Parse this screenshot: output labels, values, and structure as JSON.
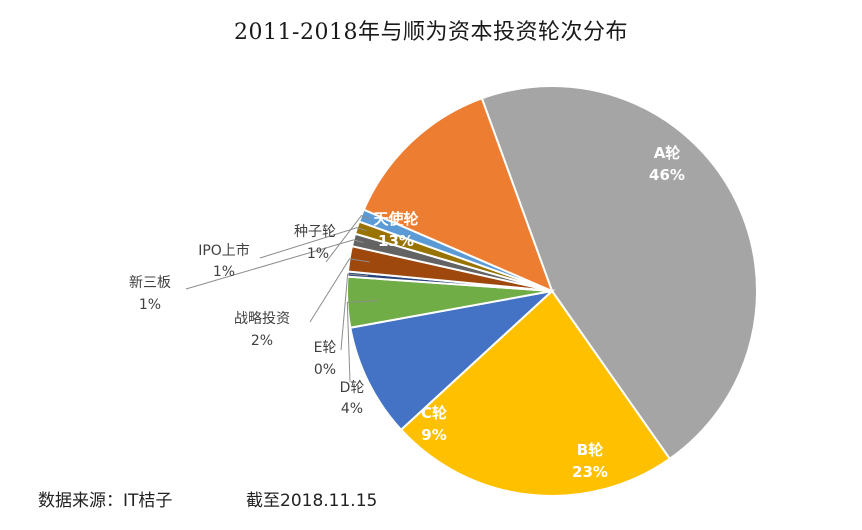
{
  "chart_data": {
    "type": "pie",
    "title": "2011-2018年与顺为资本投资轮次分布",
    "slices": [
      {
        "label": "A轮",
        "value": 46,
        "percent_label": "46%",
        "color": "#a5a5a5"
      },
      {
        "label": "B轮",
        "value": 23,
        "percent_label": "23%",
        "color": "#ffc000"
      },
      {
        "label": "C轮",
        "value": 9,
        "percent_label": "9%",
        "color": "#4472c4"
      },
      {
        "label": "D轮",
        "value": 4,
        "percent_label": "4%",
        "color": "#70ad47"
      },
      {
        "label": "E轮",
        "value": 0.4,
        "percent_label": "0%",
        "color": "#264478"
      },
      {
        "label": "战略投资",
        "value": 2,
        "percent_label": "2%",
        "color": "#9e480e"
      },
      {
        "label": "新三板",
        "value": 1,
        "percent_label": "1%",
        "color": "#636363"
      },
      {
        "label": "IPO上市",
        "value": 1,
        "percent_label": "1%",
        "color": "#997300"
      },
      {
        "label": "种子轮",
        "value": 1,
        "percent_label": "1%",
        "color": "#5b9bd5"
      },
      {
        "label": "天使轮",
        "value": 13,
        "percent_label": "13%",
        "color": "#ed7d31"
      }
    ]
  },
  "footer": {
    "source": "数据来源：IT桔子",
    "date": "截至2018.11.15"
  }
}
